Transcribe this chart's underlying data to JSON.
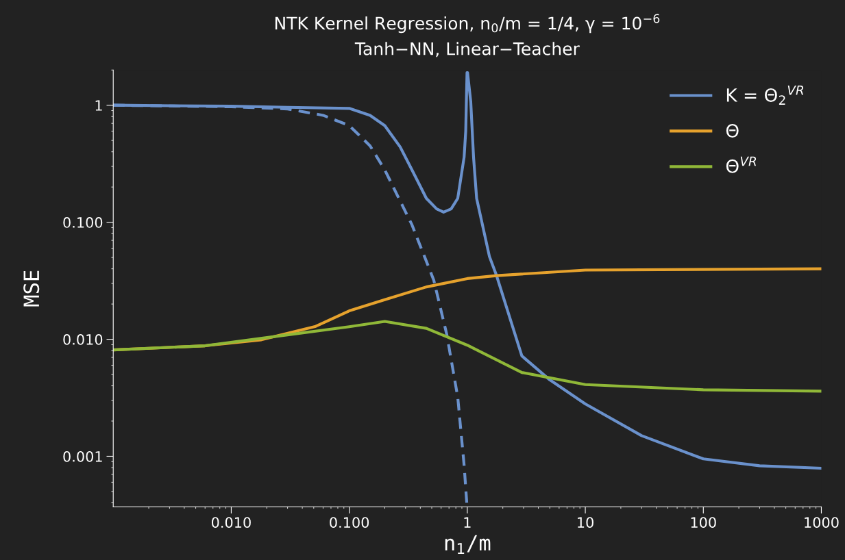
{
  "chart_data": {
    "type": "line",
    "title": "NTK Kernel Regression, n$_{0}$/m = 1/4, γ = 10$^{−6}$",
    "subtitle": "Tanh−NN, Linear−Teacher",
    "xlabel": "n$_{1}$/m",
    "ylabel": "MSE",
    "log": "xy",
    "xlim": [
      0.001,
      1000
    ],
    "ylim": [
      0.00037,
      2
    ],
    "xticks": [
      {
        "value": 0.01,
        "label": "0.010"
      },
      {
        "value": 0.1,
        "label": "0.100"
      },
      1,
      10,
      100,
      1000
    ],
    "yticks": [
      {
        "value": 0.001,
        "label": "0.001"
      },
      {
        "value": 0.01,
        "label": "0.010"
      },
      {
        "value": 0.1,
        "label": "0.100"
      },
      1
    ],
    "grid": false,
    "legend": "top right",
    "series": [
      {
        "name": "K = Θ$_{2}$$^{VR}$",
        "color": "#6a91cc",
        "line_style": "solid",
        "x": [
          0.001,
          0.01,
          0.03,
          0.1,
          0.15,
          0.2,
          0.27,
          0.34,
          0.45,
          0.55,
          0.63,
          0.73,
          0.83,
          0.94,
          0.97,
          0.995,
          1.005,
          1.07,
          1.13,
          1.2,
          1.54,
          1.77,
          2.9,
          5,
          10,
          30,
          100,
          300,
          1000
        ],
        "values": [
          1,
          0.98,
          0.96,
          0.94,
          0.82,
          0.67,
          0.44,
          0.28,
          0.16,
          0.13,
          0.122,
          0.13,
          0.16,
          0.36,
          0.6,
          1.9,
          1.9,
          1.07,
          0.36,
          0.16,
          0.051,
          0.035,
          0.0072,
          0.0045,
          0.0028,
          0.0015,
          0.00095,
          0.00083,
          0.00079
        ]
      },
      {
        "color": "#6a91cc",
        "line_style": "dashed",
        "x": [
          0.001,
          0.01,
          0.03,
          0.06,
          0.1,
          0.15,
          0.2,
          0.34,
          0.52,
          0.67,
          0.83,
          0.94,
          0.99
        ],
        "values": [
          1,
          0.97,
          0.93,
          0.82,
          0.67,
          0.45,
          0.28,
          0.095,
          0.032,
          0.011,
          0.0032,
          0.00084,
          0.0004
        ]
      },
      {
        "name": "Θ",
        "color": "#e6a22d",
        "line_style": "solid",
        "x": [
          0.001,
          0.006,
          0.018,
          0.052,
          0.1,
          0.2,
          0.45,
          1,
          1.77,
          10,
          1000
        ],
        "values": [
          0.0081,
          0.0088,
          0.0099,
          0.0129,
          0.0175,
          0.0218,
          0.028,
          0.033,
          0.035,
          0.039,
          0.04
        ]
      },
      {
        "name": "Θ$^{VR}$",
        "color": "#90b838",
        "line_style": "solid",
        "x": [
          0.001,
          0.006,
          0.03,
          0.1,
          0.2,
          0.45,
          1,
          2.9,
          10,
          100,
          1000
        ],
        "values": [
          0.0081,
          0.0088,
          0.0109,
          0.0128,
          0.0142,
          0.0124,
          0.0089,
          0.0052,
          0.0041,
          0.0037,
          0.0036
        ]
      }
    ]
  }
}
